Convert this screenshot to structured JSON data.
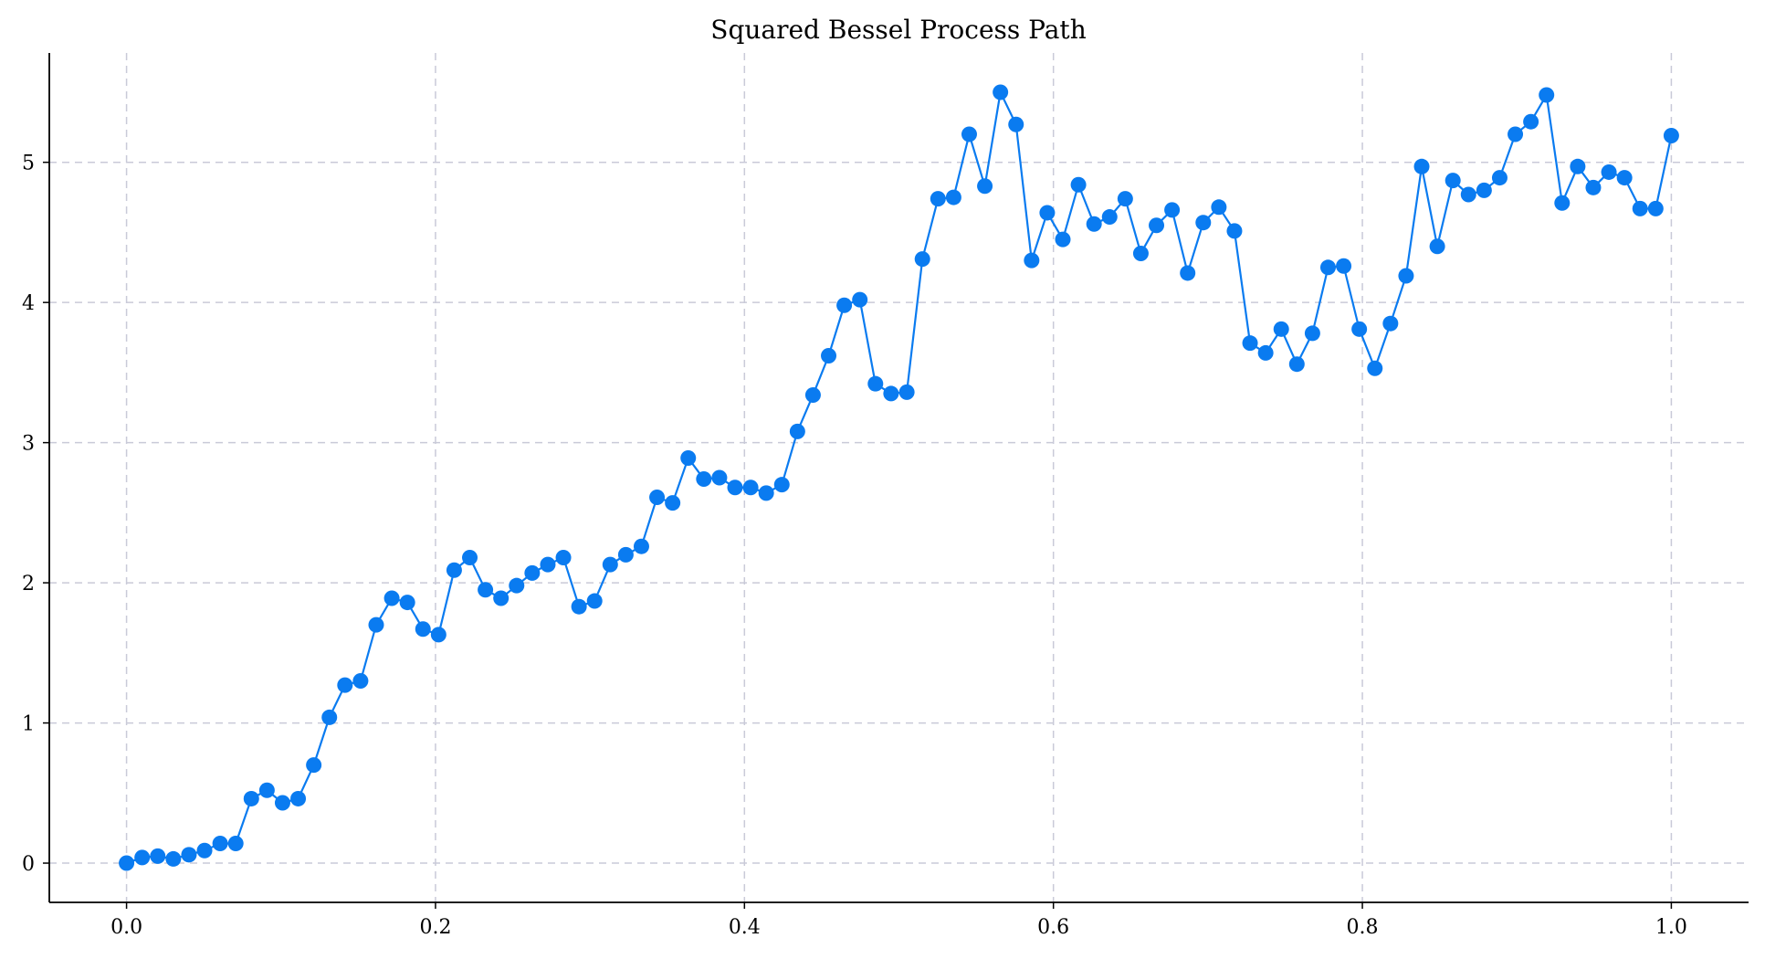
{
  "chart_data": {
    "type": "line",
    "title": "Squared Bessel Process Path",
    "xlabel": "",
    "ylabel": "",
    "xlim": [
      -0.05,
      1.05
    ],
    "ylim": [
      -0.28,
      5.78
    ],
    "xticks": [
      0.0,
      0.2,
      0.4,
      0.6,
      0.8,
      1.0
    ],
    "xtick_labels": [
      "0.0",
      "0.2",
      "0.4",
      "0.6",
      "0.8",
      "1.0"
    ],
    "yticks": [
      0,
      1,
      2,
      3,
      4,
      5
    ],
    "ytick_labels": [
      "0",
      "1",
      "2",
      "3",
      "4",
      "5"
    ],
    "grid": true,
    "legend": "none",
    "color": "#0a7bf0",
    "x": [
      0.0,
      0.0101,
      0.0202,
      0.0303,
      0.0404,
      0.0505,
      0.0606,
      0.0707,
      0.0808,
      0.0909,
      0.101,
      0.1111,
      0.1212,
      0.1313,
      0.1414,
      0.1515,
      0.1616,
      0.1717,
      0.1818,
      0.1919,
      0.202,
      0.2121,
      0.2222,
      0.2323,
      0.2424,
      0.2525,
      0.2626,
      0.2727,
      0.2828,
      0.2929,
      0.303,
      0.3131,
      0.3232,
      0.3333,
      0.3434,
      0.3535,
      0.3636,
      0.3737,
      0.3838,
      0.3939,
      0.404,
      0.4141,
      0.4242,
      0.4343,
      0.4444,
      0.4545,
      0.4646,
      0.4747,
      0.4848,
      0.4949,
      0.5051,
      0.5152,
      0.5253,
      0.5354,
      0.5455,
      0.5556,
      0.5657,
      0.5758,
      0.5859,
      0.596,
      0.6061,
      0.6162,
      0.6263,
      0.6364,
      0.6465,
      0.6566,
      0.6667,
      0.6768,
      0.6869,
      0.697,
      0.7071,
      0.7172,
      0.7273,
      0.7374,
      0.7475,
      0.7576,
      0.7677,
      0.7778,
      0.7879,
      0.798,
      0.8081,
      0.8182,
      0.8283,
      0.8384,
      0.8485,
      0.8586,
      0.8687,
      0.8788,
      0.8889,
      0.899,
      0.9091,
      0.9192,
      0.9293,
      0.9394,
      0.9495,
      0.9596,
      0.9697,
      0.9798,
      0.9899,
      1.0
    ],
    "y": [
      0.0,
      0.04,
      0.05,
      0.03,
      0.06,
      0.09,
      0.14,
      0.14,
      0.46,
      0.52,
      0.43,
      0.46,
      0.7,
      1.04,
      1.27,
      1.3,
      1.7,
      1.89,
      1.86,
      1.67,
      1.63,
      2.09,
      2.18,
      1.95,
      1.89,
      1.98,
      2.07,
      2.13,
      2.18,
      1.83,
      1.87,
      2.13,
      2.2,
      2.26,
      2.61,
      2.57,
      2.89,
      2.74,
      2.75,
      2.68,
      2.68,
      2.64,
      2.7,
      3.08,
      3.34,
      3.62,
      3.98,
      4.02,
      3.42,
      3.35,
      3.36,
      4.31,
      4.74,
      4.75,
      5.2,
      4.83,
      5.5,
      5.27,
      4.3,
      4.64,
      4.45,
      4.84,
      4.56,
      4.61,
      4.74,
      4.35,
      4.55,
      4.66,
      4.21,
      4.57,
      4.68,
      4.51,
      3.71,
      3.64,
      3.81,
      3.56,
      3.78,
      4.25,
      4.26,
      3.81,
      3.53,
      3.85,
      4.19,
      4.97,
      4.4,
      4.87,
      4.77,
      4.8,
      4.89,
      5.2,
      5.29,
      5.48,
      4.71,
      4.97,
      4.82,
      4.93,
      4.89,
      4.67,
      4.67,
      5.19
    ]
  }
}
